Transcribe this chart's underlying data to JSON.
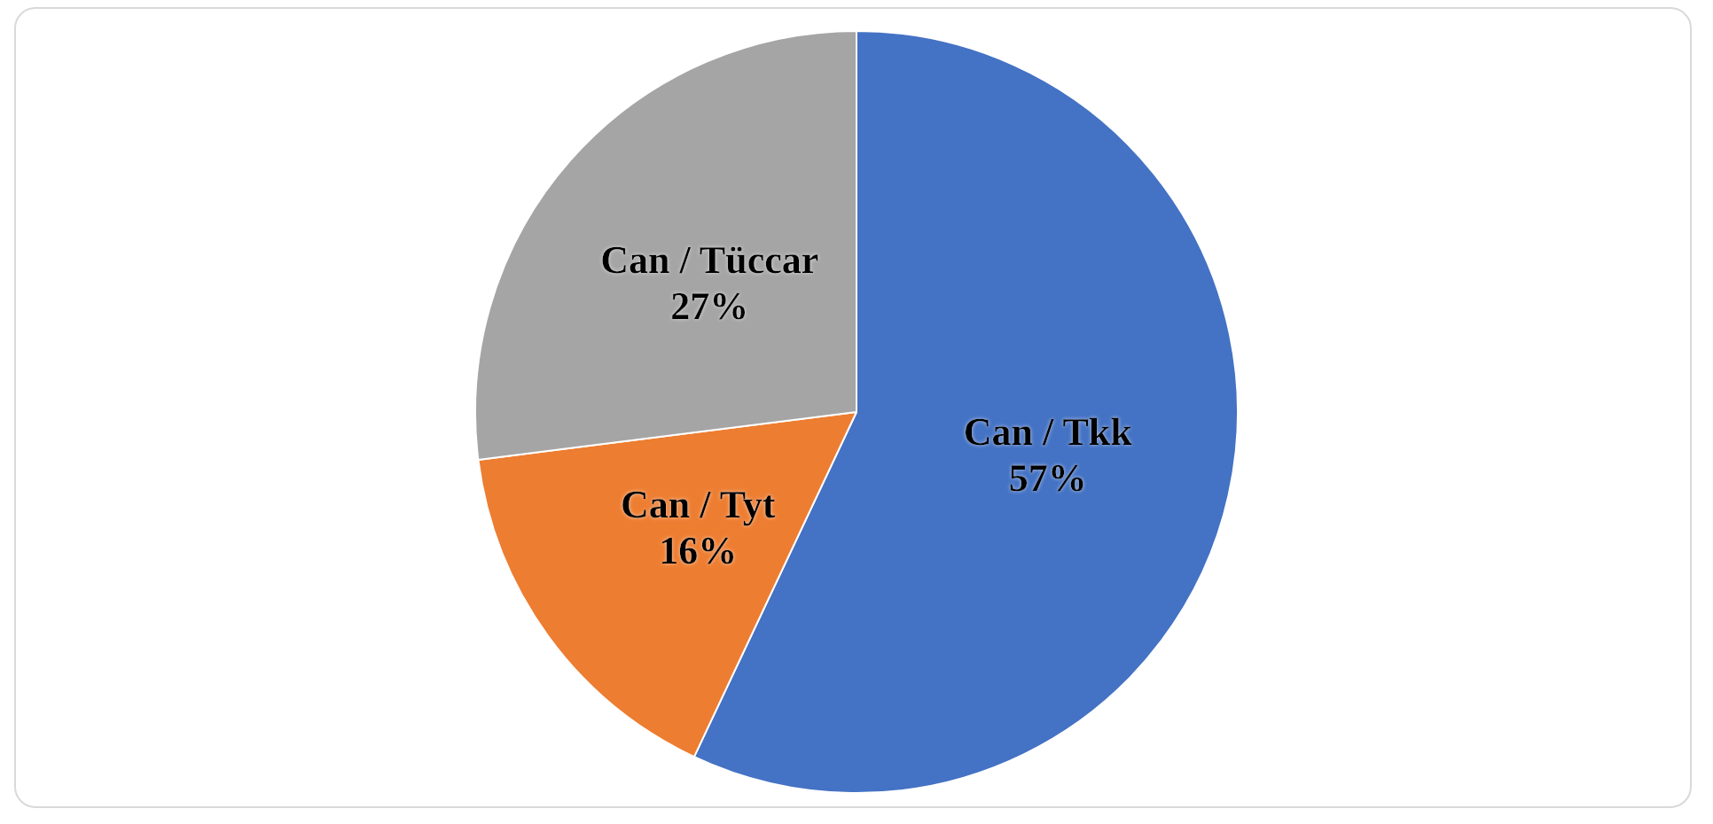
{
  "chart_data": {
    "type": "pie",
    "categories": [
      "Can / Tkk",
      "Can / Tyt",
      "Can / Tüccar"
    ],
    "values": [
      57,
      16,
      27
    ],
    "value_labels": [
      "57%",
      "16%",
      "27%"
    ],
    "colors": [
      "#4472c4",
      "#ed7d31",
      "#a5a5a5"
    ],
    "legend": false
  }
}
